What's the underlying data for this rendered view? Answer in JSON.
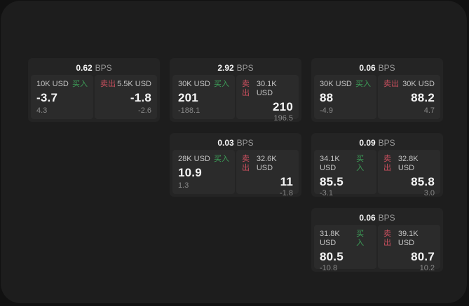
{
  "theme": {
    "outer_bg": "#111111",
    "window_bg": "#1d1d1d",
    "card_bg": "#242424",
    "panel_bg": "#2b2b2b",
    "value_color": "#f5f5f5",
    "label_color": "#c4c4c4",
    "muted_color": "#8a8a8a",
    "bps_unit_color": "#9a9a9a",
    "buy_color": "#3d9e58",
    "sell_color": "#c94f5e"
  },
  "labels": {
    "buy": "买入",
    "sell": "卖出",
    "bps_unit": "BPS"
  },
  "cards": [
    {
      "row": 1,
      "col": 1,
      "bps": "0.62",
      "buy": {
        "size": "10K USD",
        "price": "-3.7",
        "delta": "4.3"
      },
      "sell": {
        "size": "5.5K USD",
        "price": "-1.8",
        "delta": "-2.6"
      }
    },
    {
      "row": 1,
      "col": 2,
      "bps": "2.92",
      "buy": {
        "size": "30K USD",
        "price": "201",
        "delta": "-188.1"
      },
      "sell": {
        "size": "30.1K USD",
        "price": "210",
        "delta": "196.5"
      }
    },
    {
      "row": 1,
      "col": 3,
      "bps": "0.06",
      "buy": {
        "size": "30K USD",
        "price": "88",
        "delta": "-4.9"
      },
      "sell": {
        "size": "30K USD",
        "price": "88.2",
        "delta": "4.7"
      }
    },
    {
      "row": 2,
      "col": 2,
      "bps": "0.03",
      "buy": {
        "size": "28K USD",
        "price": "10.9",
        "delta": "1.3"
      },
      "sell": {
        "size": "32.6K USD",
        "price": "11",
        "delta": "-1.8"
      }
    },
    {
      "row": 2,
      "col": 3,
      "bps": "0.09",
      "buy": {
        "size": "34.1K USD",
        "price": "85.5",
        "delta": "-3.1"
      },
      "sell": {
        "size": "32.8K USD",
        "price": "85.8",
        "delta": "3.0"
      }
    },
    {
      "row": 3,
      "col": 3,
      "bps": "0.06",
      "buy": {
        "size": "31.8K USD",
        "price": "80.5",
        "delta": "-10.8"
      },
      "sell": {
        "size": "39.1K USD",
        "price": "80.7",
        "delta": "10.2"
      }
    }
  ]
}
